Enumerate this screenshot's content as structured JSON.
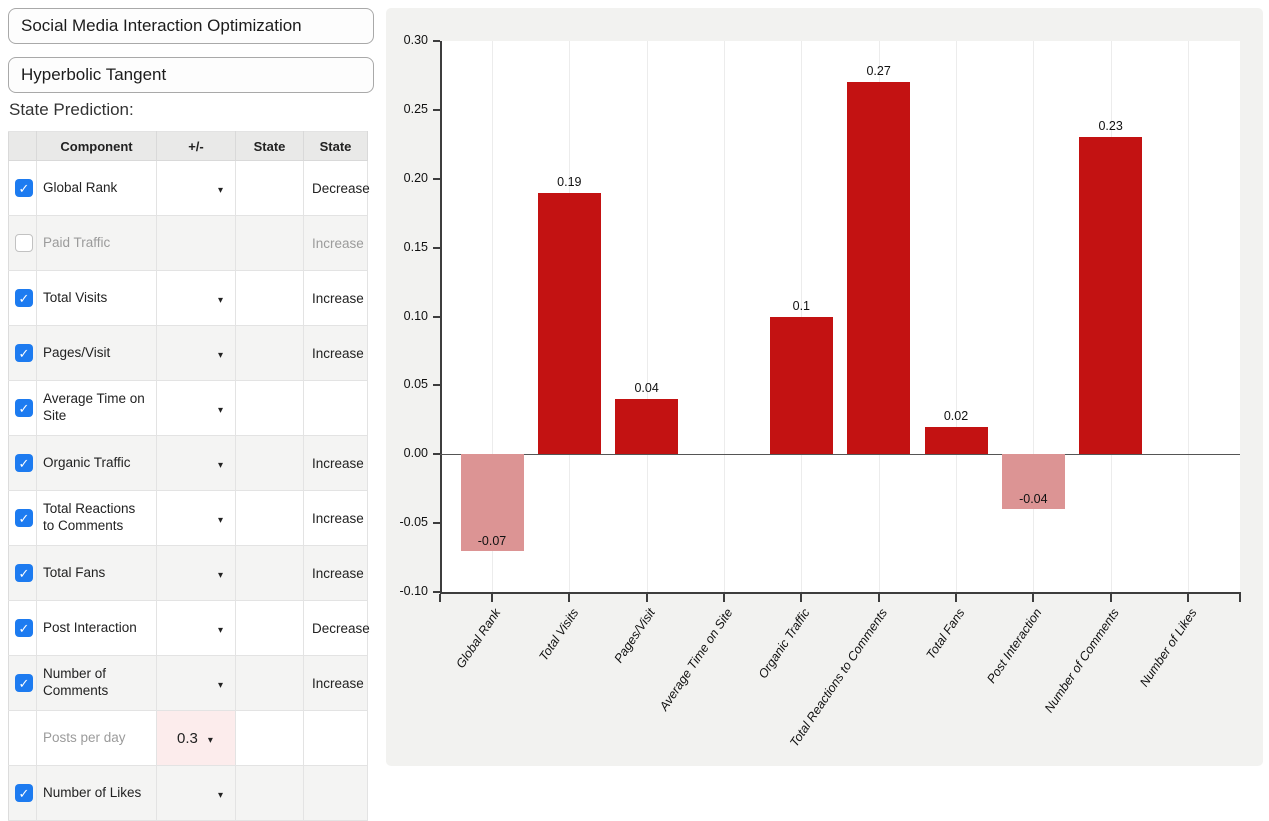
{
  "inputs": {
    "objective": "Social Media Interaction Optimization",
    "function": "Hyperbolic Tangent"
  },
  "section_title": "State Prediction:",
  "table": {
    "headers": [
      "",
      "Component",
      "+/-",
      "State",
      "State"
    ],
    "rows": [
      {
        "component": "Global Rank",
        "checked": true,
        "enabled": true,
        "caret": true,
        "value": "",
        "value_highlight": false,
        "state": "Decrease"
      },
      {
        "component": "Paid Traffic",
        "checked": false,
        "enabled": false,
        "caret": false,
        "value": "",
        "value_highlight": false,
        "state": "Increase"
      },
      {
        "component": "Total Visits",
        "checked": true,
        "enabled": true,
        "caret": true,
        "value": "",
        "value_highlight": false,
        "state": "Increase"
      },
      {
        "component": "Pages/Visit",
        "checked": true,
        "enabled": true,
        "caret": true,
        "value": "",
        "value_highlight": false,
        "state": "Increase"
      },
      {
        "component": "Average Time on Site",
        "checked": true,
        "enabled": true,
        "caret": true,
        "value": "",
        "value_highlight": false,
        "state": ""
      },
      {
        "component": "Organic Traffic",
        "checked": true,
        "enabled": true,
        "caret": true,
        "value": "",
        "value_highlight": false,
        "state": "Increase"
      },
      {
        "component": "Total Reactions to Comments",
        "checked": true,
        "enabled": true,
        "caret": true,
        "value": "",
        "value_highlight": false,
        "state": "Increase"
      },
      {
        "component": "Total Fans",
        "checked": true,
        "enabled": true,
        "caret": true,
        "value": "",
        "value_highlight": false,
        "state": "Increase"
      },
      {
        "component": "Post Interaction",
        "checked": true,
        "enabled": true,
        "caret": true,
        "value": "",
        "value_highlight": false,
        "state": "Decrease"
      },
      {
        "component": "Number of Comments",
        "checked": true,
        "enabled": true,
        "caret": true,
        "value": "",
        "value_highlight": false,
        "state": "Increase"
      },
      {
        "component": "Posts per day",
        "checked": null,
        "enabled": false,
        "caret": true,
        "value": "0.3",
        "value_highlight": true,
        "state": ""
      },
      {
        "component": "Number of Likes",
        "checked": true,
        "enabled": true,
        "caret": true,
        "value": "",
        "value_highlight": false,
        "state": ""
      }
    ]
  },
  "chart_data": {
    "type": "bar",
    "title": "",
    "xlabel": "",
    "ylabel": "",
    "categories": [
      "Global Rank",
      "Total Visits",
      "Pages/Visit",
      "Average Time on Site",
      "Organic Traffic",
      "Total Reactions to Comments",
      "Total Fans",
      "Post Interaction",
      "Number of Comments",
      "Number of Likes"
    ],
    "values": [
      -0.07,
      0.19,
      0.04,
      null,
      0.1,
      0.27,
      0.02,
      -0.04,
      0.23,
      null
    ],
    "value_labels": [
      "-0.07",
      "0.19",
      "0.04",
      "",
      "0.1",
      "0.27",
      "0.02",
      "-0.04",
      "0.23",
      ""
    ],
    "ylim": [
      -0.1,
      0.3
    ],
    "ytick_labels": [
      "0.30",
      "0.25",
      "0.20",
      "0.15",
      "0.10",
      "0.05",
      "0.00",
      "-0.05",
      "-0.10"
    ],
    "grid": "vertical",
    "legend": "none",
    "colors": {
      "positive_bar": "#c31212",
      "negative_bar": "#dc9494"
    }
  },
  "colors": {
    "checkbox_on": "#1d7bf0",
    "value_cell_highlight": "#fcecec",
    "panel_background": "#f2f2f0"
  }
}
